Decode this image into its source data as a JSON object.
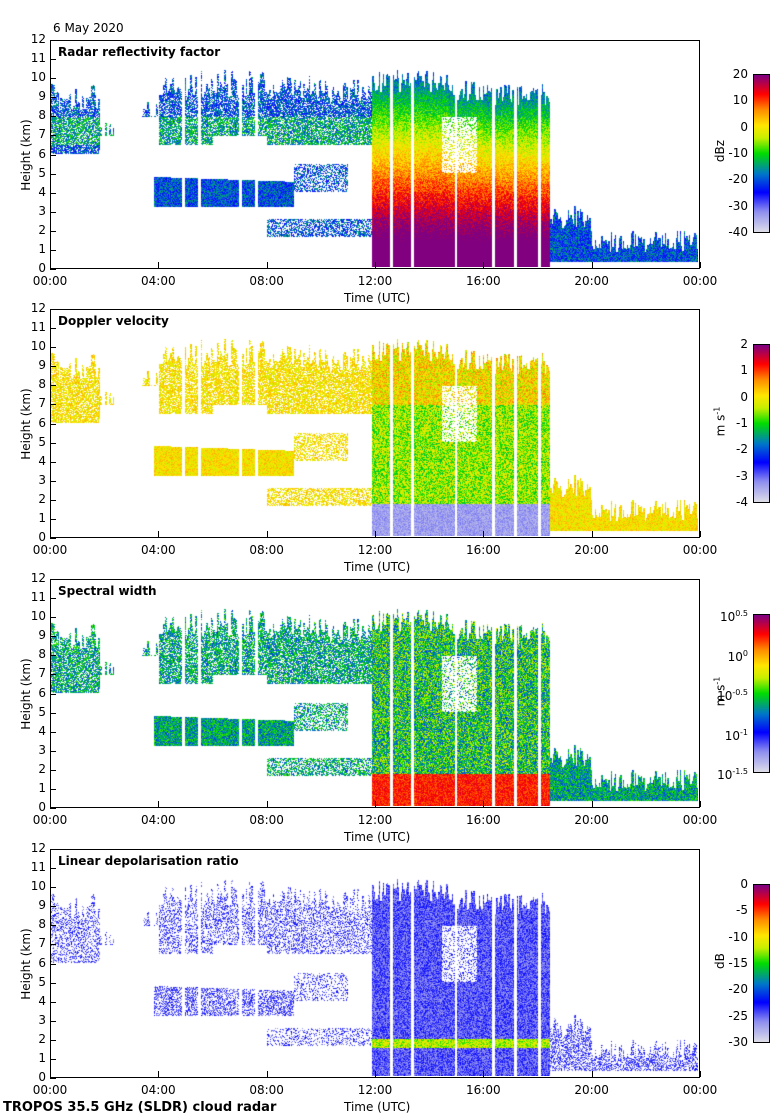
{
  "date": "6 May 2020",
  "footer": "TROPOS 35.5 GHz (SLDR) cloud radar",
  "chart_data": [
    {
      "type": "heatmap",
      "title": "Radar reflectivity factor",
      "xlabel": "Time (UTC)",
      "ylabel": "Height (km)",
      "xticks": [
        "00:00",
        "04:00",
        "08:00",
        "12:00",
        "16:00",
        "20:00",
        "00:00"
      ],
      "yticks": [
        "0",
        "1",
        "2",
        "3",
        "4",
        "5",
        "6",
        "7",
        "8",
        "9",
        "10",
        "11",
        "12"
      ],
      "ylim": [
        0,
        12
      ],
      "xlim_hours": [
        0,
        24
      ],
      "colorbar": {
        "label": "dBz",
        "range": [
          -40,
          20
        ],
        "ticks": [
          "20",
          "10",
          "0",
          "-10",
          "-20",
          "-30",
          "-40"
        ]
      },
      "variable": "reflectivity"
    },
    {
      "type": "heatmap",
      "title": "Doppler velocity",
      "xlabel": "Time (UTC)",
      "ylabel": "Height (km)",
      "xticks": [
        "00:00",
        "04:00",
        "08:00",
        "12:00",
        "16:00",
        "20:00",
        "00:00"
      ],
      "yticks": [
        "0",
        "1",
        "2",
        "3",
        "4",
        "5",
        "6",
        "7",
        "8",
        "9",
        "10",
        "11",
        "12"
      ],
      "ylim": [
        0,
        12
      ],
      "xlim_hours": [
        0,
        24
      ],
      "colorbar": {
        "label": "m s-1",
        "range": [
          -4,
          2
        ],
        "ticks": [
          "2",
          "1",
          "0",
          "-1",
          "-2",
          "-3",
          "-4"
        ]
      },
      "variable": "velocity"
    },
    {
      "type": "heatmap",
      "title": "Spectral width",
      "xlabel": "Time (UTC)",
      "ylabel": "Height (km)",
      "xticks": [
        "00:00",
        "04:00",
        "08:00",
        "12:00",
        "16:00",
        "20:00",
        "00:00"
      ],
      "yticks": [
        "0",
        "1",
        "2",
        "3",
        "4",
        "5",
        "6",
        "7",
        "8",
        "9",
        "10",
        "11",
        "12"
      ],
      "ylim": [
        0,
        12
      ],
      "xlim_hours": [
        0,
        24
      ],
      "colorbar": {
        "label": "m s-1",
        "scale": "log",
        "range_exp": [
          -1.5,
          0.5
        ],
        "ticks": [
          "10^0.5",
          "10^0",
          "10^-0.5",
          "10^-1",
          "10^-1.5"
        ]
      },
      "variable": "width"
    },
    {
      "type": "heatmap",
      "title": "Linear depolarisation ratio",
      "xlabel": "Time (UTC)",
      "ylabel": "Height (km)",
      "xticks": [
        "00:00",
        "04:00",
        "08:00",
        "12:00",
        "16:00",
        "20:00",
        "00:00"
      ],
      "yticks": [
        "0",
        "1",
        "2",
        "3",
        "4",
        "5",
        "6",
        "7",
        "8",
        "9",
        "10",
        "11",
        "12"
      ],
      "ylim": [
        0,
        12
      ],
      "xlim_hours": [
        0,
        24
      ],
      "colorbar": {
        "label": "dB",
        "range": [
          -30,
          0
        ],
        "ticks": [
          "0",
          "-5",
          "-10",
          "-15",
          "-20",
          "-25",
          "-30"
        ]
      },
      "variable": "ldr"
    }
  ]
}
